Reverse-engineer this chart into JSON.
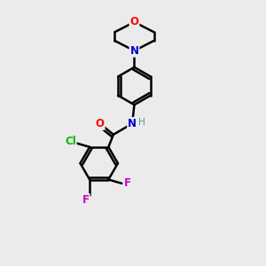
{
  "background_color": "#ebebeb",
  "bond_color": "#000000",
  "atom_colors": {
    "O": "#ff0000",
    "N": "#0000cc",
    "Cl": "#00bb00",
    "F": "#cc00cc",
    "H": "#4a9a9a",
    "C": "#000000"
  },
  "figsize": [
    3.0,
    3.0
  ],
  "dpi": 100
}
